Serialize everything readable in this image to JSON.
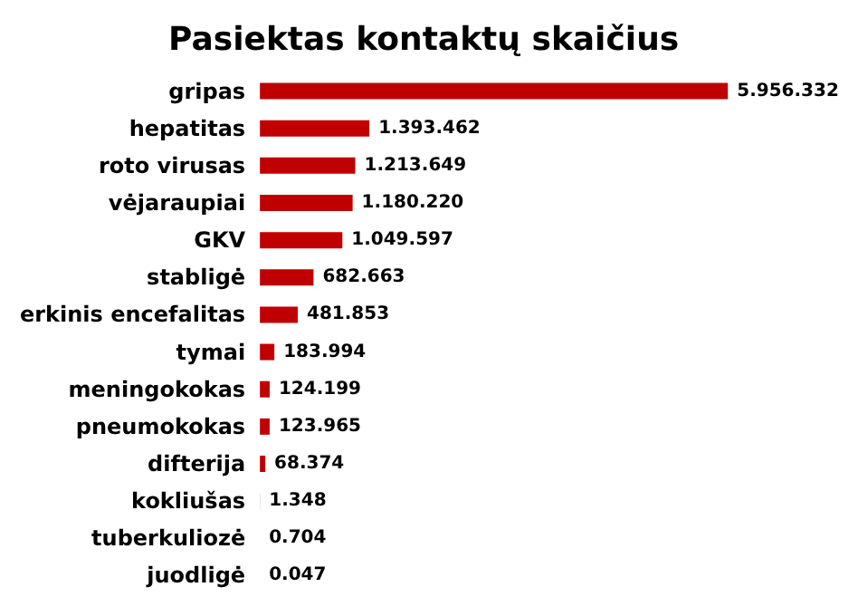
{
  "chart_data": {
    "type": "bar",
    "orientation": "horizontal",
    "title": "Pasiektas kontaktų skaičius",
    "categories": [
      "gripas",
      "hepatitas",
      "roto virusas",
      "vėjaraupiai",
      "GKV",
      "stabligė",
      "erkinis encefalitas",
      "tymai",
      "meningokokas",
      "pneumokokas",
      "difterija",
      "kokliušas",
      "tuberkuliozė",
      "juodligė"
    ],
    "values": [
      5956332,
      1393462,
      1213649,
      1180220,
      1049597,
      682663,
      481853,
      183994,
      124199,
      123965,
      68374,
      1348,
      0.704,
      0.047
    ],
    "value_labels": [
      "5.956.332",
      "1.393.462",
      "1.213.649",
      "1.180.220",
      "1.049.597",
      "682.663",
      "481.853",
      "183.994",
      "124.199",
      "123.965",
      "68.374",
      "1.348",
      "0.704",
      "0.047"
    ],
    "color": "#c00000"
  }
}
